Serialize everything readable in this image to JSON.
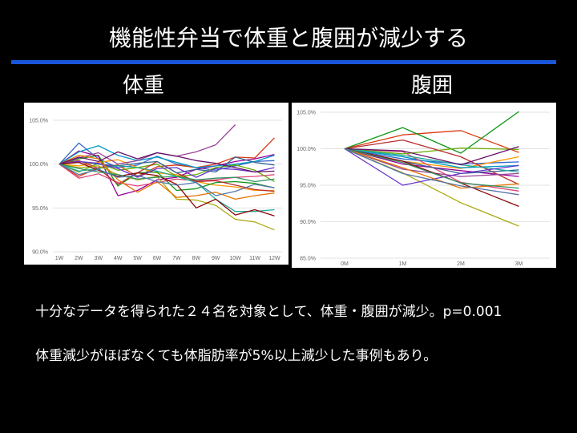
{
  "slide": {
    "title": "機能性弁当で体重と腹囲が減少する",
    "left_heading": "体重",
    "right_heading": "腹囲",
    "note1": "十分なデータを得られた２４名を対象として、体重・腹囲が減少。p=0.001",
    "note2": "体重減少がほぼなくても体脂肪率が5%以上減少した事例もあり。",
    "accent_color": "#1a56db"
  },
  "chart_data": [
    {
      "type": "line",
      "title": "体重",
      "x": [
        "1W",
        "2W",
        "3W",
        "4W",
        "5W",
        "6W",
        "7W",
        "8W",
        "9W",
        "10W",
        "11W",
        "12W"
      ],
      "ylim": [
        90,
        105
      ],
      "yticks": [
        "90.0%",
        "95.0%",
        "100.0%",
        "105.0%"
      ],
      "ytick_values": [
        90,
        95,
        100,
        105
      ],
      "grid": true,
      "series": [
        {
          "color": "#3366cc",
          "values": [
            100,
            102.4,
            100.6,
            99.6,
            99.9,
            100.9,
            100.0,
            99.6,
            99.3,
            99.8,
            100.3,
            100.4
          ]
        },
        {
          "color": "#dc3912",
          "values": [
            100,
            98.6,
            99.6,
            99.9,
            98.6,
            99.7,
            99.9,
            99.6,
            100.0,
            100.8,
            100.7,
            103.0
          ]
        },
        {
          "color": "#ff9900",
          "values": [
            100,
            99.8,
            100.2,
            100.5,
            99.6,
            99.0,
            98.8,
            98.0,
            97.6,
            97.4,
            97.0,
            97.0
          ]
        },
        {
          "color": "#109618",
          "values": [
            100,
            100.6,
            101.0,
            97.5,
            99.0,
            99.1,
            97.0,
            97.2,
            97.9,
            98.0,
            97.8,
            97.3
          ]
        },
        {
          "color": "#990099",
          "values": [
            100,
            101.5,
            100.9,
            96.4,
            97.0,
            98.2,
            98.5,
            99.4,
            99.8,
            100.3,
            100.6,
            101.1
          ]
        },
        {
          "color": "#0099c6",
          "values": [
            100,
            101.4,
            102.1,
            101.0,
            100.4,
            100.8,
            100.2,
            99.6,
            99.8,
            100.0,
            100.3,
            101.0
          ]
        },
        {
          "color": "#dd4477",
          "values": [
            100,
            98.4,
            98.9,
            97.9,
            97.5,
            97.9,
            98.3,
            98.1,
            98.2,
            98.5,
            98.6,
            98.8
          ]
        },
        {
          "color": "#66aa00",
          "values": [
            100,
            99.1,
            100.1,
            99.3,
            99.6,
            100.0,
            98.6,
            98.8,
            99.6,
            99.9,
            99.3,
            98.0
          ]
        },
        {
          "color": "#b82e2e",
          "values": [
            100,
            100.4,
            99.5,
            97.7,
            99.0,
            100.3,
            99.0,
            98.0,
            98.1,
            97.6,
            97.1,
            96.9
          ]
        },
        {
          "color": "#316395",
          "values": [
            100,
            100.3,
            100.0,
            99.8,
            100.1,
            100.3,
            99.0,
            99.4,
            99.1,
            100.8,
            100.2,
            99.9
          ]
        },
        {
          "color": "#994499",
          "values": [
            100,
            100.7,
            101.3,
            100.0,
            100.4,
            101.3,
            100.9,
            101.4,
            102.2,
            104.5,
            null,
            null
          ]
        },
        {
          "color": "#22aa99",
          "values": [
            100,
            99.2,
            99.5,
            99.8,
            99.6,
            99.2,
            98.6,
            97.9,
            96.0,
            94.6,
            94.6,
            94.8
          ]
        },
        {
          "color": "#aaaa11",
          "values": [
            100,
            99.6,
            99.8,
            98.8,
            98.2,
            98.6,
            96.0,
            95.9,
            95.3,
            93.7,
            93.4,
            92.5
          ]
        },
        {
          "color": "#6633cc",
          "values": [
            100,
            100.3,
            100.1,
            99.5,
            98.5,
            99.5,
            99.6,
            98.5,
            99.5,
            99.4,
            99.1,
            99.6
          ]
        },
        {
          "color": "#e67300",
          "values": [
            100,
            101.0,
            100.6,
            98.2,
            96.8,
            98.0,
            96.2,
            96.4,
            96.8,
            96.0,
            96.4,
            96.7
          ]
        },
        {
          "color": "#8b0707",
          "values": [
            100,
            100.2,
            99.3,
            98.6,
            99.0,
            98.7,
            97.7,
            95.0,
            96.0,
            94.2,
            94.8,
            94.1
          ]
        },
        {
          "color": "#651067",
          "values": [
            100,
            100.8,
            100.3,
            101.4,
            100.6,
            101.3,
            100.9,
            100.4,
            100.1,
            99.6,
            99.1,
            99.2
          ]
        },
        {
          "color": "#329262",
          "values": [
            100,
            99.5,
            99.1,
            98.8,
            98.3,
            98.5,
            98.6,
            98.2,
            98.4,
            98.5,
            98.0,
            98.3
          ]
        },
        {
          "color": "#5574a6",
          "values": [
            100,
            98.8,
            99.4,
            98.5,
            98.7,
            98.0,
            97.6,
            97.9,
            96.4,
            96.9,
            97.7,
            97.3
          ]
        }
      ]
    },
    {
      "type": "line",
      "title": "腹囲",
      "x": [
        "0M",
        "1M",
        "2M",
        "3M"
      ],
      "ylim": [
        85,
        105
      ],
      "yticks": [
        "85.0%",
        "90.0%",
        "95.0%",
        "100.0%",
        "105.0%"
      ],
      "ytick_values": [
        85,
        90,
        95,
        100,
        105
      ],
      "grid": true,
      "series": [
        {
          "color": "#3366cc",
          "values": [
            100,
            98.6,
            97.9,
            98.2
          ]
        },
        {
          "color": "#dc3912",
          "values": [
            100,
            101.9,
            102.5,
            99.5
          ]
        },
        {
          "color": "#ff9900",
          "values": [
            100,
            98.3,
            97.3,
            98.9
          ]
        },
        {
          "color": "#109618",
          "values": [
            100,
            102.9,
            99.4,
            105.1
          ]
        },
        {
          "color": "#990099",
          "values": [
            100,
            97.9,
            97.0,
            96.2
          ]
        },
        {
          "color": "#0099c6",
          "values": [
            100,
            98.9,
            97.4,
            97.7
          ]
        },
        {
          "color": "#dd4477",
          "values": [
            100,
            99.6,
            95.4,
            94.2
          ]
        },
        {
          "color": "#66aa00",
          "values": [
            100,
            99.3,
            100.1,
            99.9
          ]
        },
        {
          "color": "#b82e2e",
          "values": [
            100,
            101.2,
            98.9,
            95.1
          ]
        },
        {
          "color": "#316395",
          "values": [
            100,
            98.3,
            96.6,
            97.1
          ]
        },
        {
          "color": "#994499",
          "values": [
            100,
            97.2,
            96.2,
            96.6
          ]
        },
        {
          "color": "#22aa99",
          "values": [
            100,
            99.1,
            97.8,
            96.8
          ]
        },
        {
          "color": "#aaaa11",
          "values": [
            100,
            96.7,
            92.6,
            89.4
          ]
        },
        {
          "color": "#6633cc",
          "values": [
            100,
            95.0,
            96.6,
            97.7
          ]
        },
        {
          "color": "#e67300",
          "values": [
            100,
            97.4,
            94.6,
            95.2
          ]
        },
        {
          "color": "#8b0707",
          "values": [
            100,
            98.3,
            95.3,
            92.1
          ]
        },
        {
          "color": "#651067",
          "values": [
            100,
            99.7,
            97.8,
            100.3
          ]
        },
        {
          "color": "#329262",
          "values": [
            100,
            98.1,
            95.3,
            94.6
          ]
        },
        {
          "color": "#5574a6",
          "values": [
            100,
            96.6,
            94.9,
            93.7
          ]
        }
      ]
    }
  ]
}
